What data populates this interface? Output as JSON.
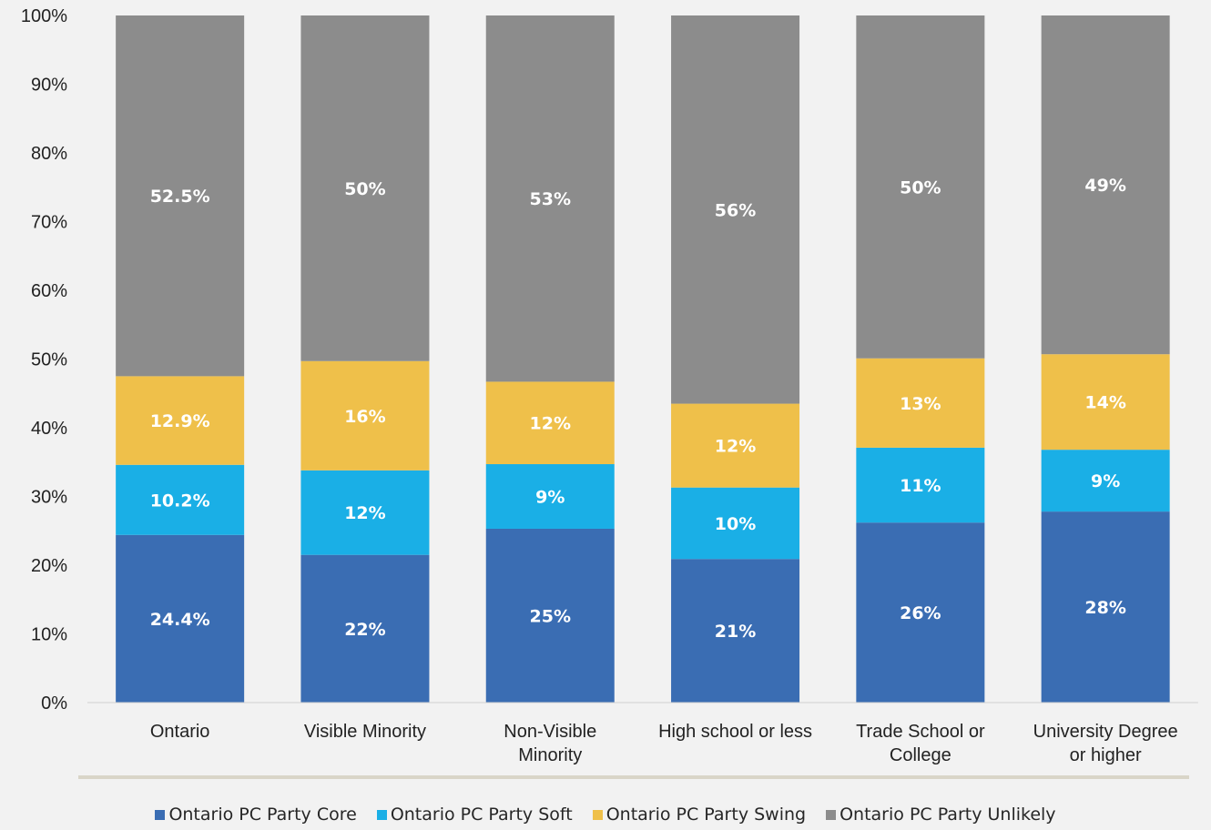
{
  "chart_data": {
    "type": "bar",
    "stacked": true,
    "categories": [
      [
        "Ontario"
      ],
      [
        "Visible Minority"
      ],
      [
        "Non-Visible",
        "Minority"
      ],
      [
        "High school or less"
      ],
      [
        "Trade School or",
        "College"
      ],
      [
        "University Degree",
        "or higher"
      ]
    ],
    "series": [
      {
        "name": "Ontario PC Party Core",
        "color": "#3a6db3",
        "values": [
          24.4,
          21.5,
          25.3,
          20.9,
          26.2,
          27.8
        ],
        "labels": [
          "24.4%",
          "22%",
          "25%",
          "21%",
          "26%",
          "28%"
        ]
      },
      {
        "name": "Ontario PC Party Soft",
        "color": "#1aafe6",
        "values": [
          10.2,
          12.3,
          9.4,
          10.4,
          10.9,
          9.0
        ],
        "labels": [
          "10.2%",
          "12%",
          "9%",
          "10%",
          "11%",
          "9%"
        ]
      },
      {
        "name": "Ontario PC Party Swing",
        "color": "#efc04a",
        "values": [
          12.9,
          15.9,
          12.0,
          12.2,
          13.0,
          13.9
        ],
        "labels": [
          "12.9%",
          "16%",
          "12%",
          "12%",
          "13%",
          "14%"
        ]
      },
      {
        "name": "Ontario PC Party Unlikely",
        "color": "#8c8c8c",
        "values": [
          52.5,
          50.3,
          53.3,
          56.5,
          49.9,
          49.3
        ],
        "labels": [
          "52.5%",
          "50%",
          "53%",
          "56%",
          "50%",
          "49%"
        ]
      }
    ],
    "y_ticks": [
      "0%",
      "10%",
      "20%",
      "30%",
      "40%",
      "50%",
      "60%",
      "70%",
      "80%",
      "90%",
      "100%"
    ],
    "ylim": [
      0,
      100
    ],
    "grid": false,
    "legend_position": "bottom"
  }
}
